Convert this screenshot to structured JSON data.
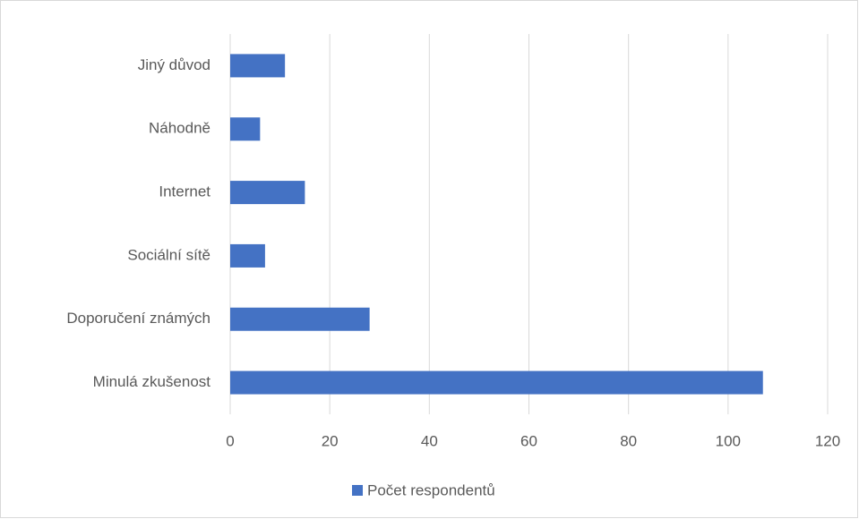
{
  "chart_data": {
    "type": "barh",
    "categories": [
      "Minulá zkušenost",
      "Doporučení známých",
      "Sociální sítě",
      "Internet",
      "Náhodně",
      "Jiný důvod"
    ],
    "series": [
      {
        "name": "Počet respondentů",
        "color": "#4472c4",
        "values": [
          107,
          28,
          7,
          15,
          6,
          11
        ]
      }
    ],
    "xlim": [
      0,
      120
    ],
    "xticks": [
      0,
      20,
      40,
      60,
      80,
      100,
      120
    ],
    "grid": true,
    "legend": "bottom"
  }
}
